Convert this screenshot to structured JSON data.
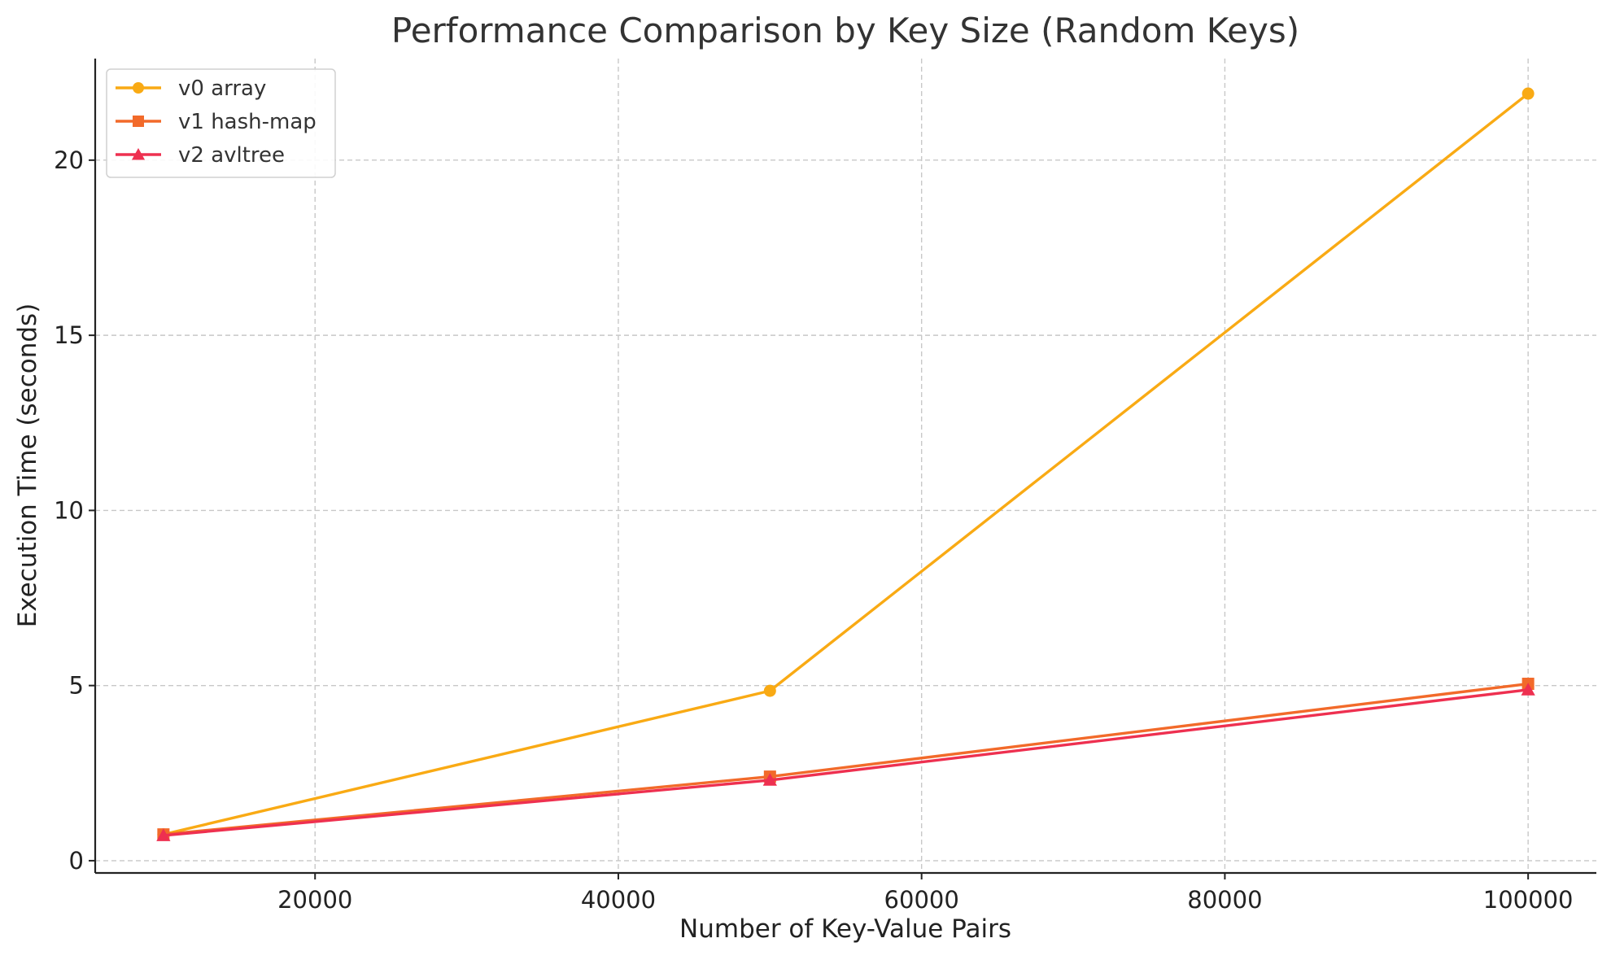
{
  "chart_data": {
    "type": "line",
    "title": "Performance Comparison by Key Size (Random Keys)",
    "xlabel": "Number of Key-Value Pairs",
    "ylabel": "Execution Time (seconds)",
    "x": [
      10000,
      50000,
      100000
    ],
    "xlim": [
      5500,
      104500
    ],
    "ylim": [
      -0.35,
      22.9
    ],
    "xticks": [
      20000,
      40000,
      60000,
      80000,
      100000
    ],
    "yticks": [
      0,
      5,
      10,
      15,
      20
    ],
    "grid": true,
    "legend_position": "top-left",
    "series": [
      {
        "name": "v0 array",
        "values": [
          0.75,
          4.85,
          21.9
        ],
        "color": "#F9AA14",
        "marker": "circle"
      },
      {
        "name": "v1 hash-map",
        "values": [
          0.75,
          2.4,
          5.05
        ],
        "color": "#F26A2A",
        "marker": "square"
      },
      {
        "name": "v2 avltree",
        "values": [
          0.72,
          2.3,
          4.88
        ],
        "color": "#EE3050",
        "marker": "triangle"
      }
    ]
  }
}
